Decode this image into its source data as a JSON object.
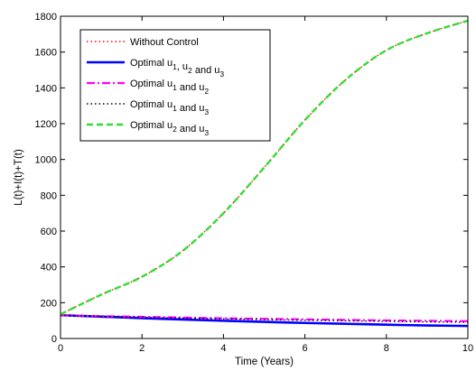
{
  "chart_data": {
    "type": "line",
    "title": "",
    "xlabel": "Time (Years)",
    "ylabel": "L(t)+I(t)+T(t)",
    "xlim": [
      0,
      10
    ],
    "ylim": [
      0,
      1800
    ],
    "x_ticks": [
      0,
      2,
      4,
      6,
      8,
      10
    ],
    "y_ticks": [
      0,
      200,
      400,
      600,
      800,
      1000,
      1200,
      1400,
      1600,
      1800
    ],
    "grid": false,
    "legend_position": "top-left",
    "series": [
      {
        "name": "Without Control",
        "label_parts": [
          [
            "Without Control",
            ""
          ]
        ],
        "color": "#ff0000",
        "dash": "dotted",
        "x": [
          0,
          1,
          2,
          3,
          4,
          5,
          6,
          7,
          8,
          9,
          10
        ],
        "y": [
          135,
          245,
          345,
          490,
          700,
          955,
          1220,
          1445,
          1610,
          1705,
          1775
        ]
      },
      {
        "name": "Optimal u1, u2 and u3",
        "label_parts": [
          [
            "Optimal u",
            "1"
          ],
          [
            ", u",
            "2"
          ],
          [
            " and u",
            "3"
          ]
        ],
        "color": "#0000ff",
        "dash": "solid",
        "x": [
          0,
          1,
          2,
          3,
          4,
          5,
          6,
          7,
          8,
          9,
          10
        ],
        "y": [
          130,
          122,
          114,
          106,
          99,
          93,
          87,
          82,
          77,
          73,
          70
        ]
      },
      {
        "name": "Optimal u1 and u2",
        "label_parts": [
          [
            "Optimal u",
            "1"
          ],
          [
            " and u",
            "2"
          ]
        ],
        "color": "#ff00ff",
        "dash": "dashdot",
        "x": [
          0,
          1,
          2,
          3,
          4,
          5,
          6,
          7,
          8,
          9,
          10
        ],
        "y": [
          130,
          125,
          121,
          117,
          113,
          110,
          107,
          104,
          101,
          99,
          97
        ]
      },
      {
        "name": "Optimal u1 and u3",
        "label_parts": [
          [
            "Optimal u",
            "1"
          ],
          [
            " and u",
            "3"
          ]
        ],
        "color": "#000000",
        "dash": "dotted",
        "x": [
          0,
          1,
          2,
          3,
          4,
          5,
          6,
          7,
          8,
          9,
          10
        ],
        "y": [
          130,
          124,
          119,
          114,
          110,
          106,
          102,
          99,
          96,
          93,
          91
        ]
      },
      {
        "name": "Optimal u2 and u3",
        "label_parts": [
          [
            "Optimal u",
            "2"
          ],
          [
            " and u",
            "3"
          ]
        ],
        "color": "#33dd33",
        "dash": "dashed",
        "x": [
          0,
          1,
          2,
          3,
          4,
          5,
          6,
          7,
          8,
          9,
          10
        ],
        "y": [
          135,
          245,
          345,
          490,
          700,
          955,
          1220,
          1445,
          1610,
          1705,
          1775
        ]
      }
    ]
  }
}
